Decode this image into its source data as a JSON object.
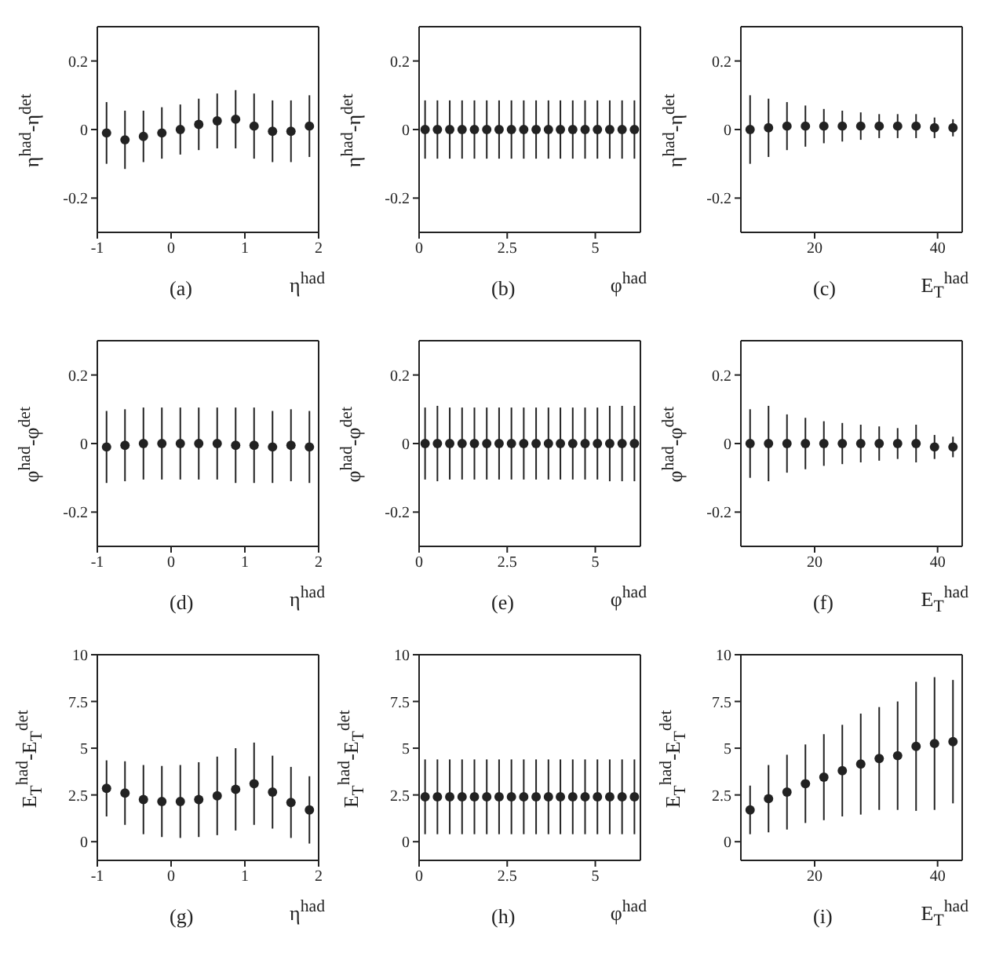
{
  "chart_data": [
    {
      "type": "scatter",
      "xlabel": "η$^{had}$",
      "ylabel": "η$^{had}$-η$^{det}$",
      "annotations": [
        "(a)"
      ],
      "marker": "circle",
      "color": "#222222",
      "x": [
        -0.875,
        -0.625,
        -0.375,
        -0.125,
        0.125,
        0.375,
        0.625,
        0.875,
        1.125,
        1.375,
        1.625,
        1.875
      ],
      "values": [
        -0.01,
        -0.03,
        -0.02,
        -0.01,
        0.0,
        0.015,
        0.025,
        0.03,
        0.01,
        -0.005,
        -0.005,
        0.01
      ],
      "errors": [
        0.09,
        0.085,
        0.075,
        0.075,
        0.073,
        0.075,
        0.08,
        0.085,
        0.095,
        0.09,
        0.09,
        0.09
      ],
      "xlim": [
        -1,
        2
      ],
      "xticks": [
        -1,
        0,
        1,
        2
      ],
      "ylim": [
        -0.3,
        0.3
      ],
      "yticks": [
        -0.2,
        0,
        0.2
      ]
    },
    {
      "type": "scatter",
      "xlabel": "φ$^{had}$",
      "ylabel": "η$^{had}$-η$^{det}$",
      "annotations": [
        "(b)"
      ],
      "marker": "circle",
      "color": "#222222",
      "x": [
        0.17,
        0.52,
        0.87,
        1.22,
        1.57,
        1.92,
        2.27,
        2.62,
        2.97,
        3.32,
        3.67,
        4.01,
        4.36,
        4.71,
        5.06,
        5.41,
        5.76,
        6.11
      ],
      "values": [
        0,
        0,
        0,
        0,
        0,
        0,
        0,
        0,
        0,
        0,
        0,
        0,
        0,
        0,
        0,
        0,
        0,
        0
      ],
      "errors": [
        0.085,
        0.085,
        0.085,
        0.085,
        0.085,
        0.085,
        0.085,
        0.085,
        0.085,
        0.085,
        0.085,
        0.085,
        0.085,
        0.085,
        0.085,
        0.085,
        0.085,
        0.085
      ],
      "xlim": [
        0,
        6.28
      ],
      "xticks": [
        0,
        2.5,
        5
      ],
      "ylim": [
        -0.3,
        0.3
      ],
      "yticks": [
        -0.2,
        0,
        0.2
      ]
    },
    {
      "type": "scatter",
      "xlabel": "E$_{T}$$^{had}$",
      "ylabel": "η$^{had}$-η$^{det}$",
      "annotations": [
        "(c)"
      ],
      "marker": "circle",
      "color": "#222222",
      "x": [
        9.5,
        12.5,
        15.5,
        18.5,
        21.5,
        24.5,
        27.5,
        30.5,
        33.5,
        36.5,
        39.5,
        42.5
      ],
      "values": [
        0,
        0.005,
        0.01,
        0.01,
        0.01,
        0.01,
        0.01,
        0.01,
        0.01,
        0.01,
        0.005,
        0.005
      ],
      "errors": [
        0.1,
        0.085,
        0.07,
        0.06,
        0.05,
        0.045,
        0.04,
        0.035,
        0.035,
        0.035,
        0.03,
        0.025
      ],
      "xlim": [
        8,
        44
      ],
      "xticks": [
        20,
        40
      ],
      "ylim": [
        -0.3,
        0.3
      ],
      "yticks": [
        -0.2,
        0,
        0.2
      ]
    },
    {
      "type": "scatter",
      "xlabel": "η$^{had}$",
      "ylabel": "φ$^{had}$-φ$^{det}$",
      "annotations": [
        "(d)"
      ],
      "marker": "circle",
      "color": "#222222",
      "x": [
        -0.875,
        -0.625,
        -0.375,
        -0.125,
        0.125,
        0.375,
        0.625,
        0.875,
        1.125,
        1.375,
        1.625,
        1.875
      ],
      "values": [
        -0.01,
        -0.005,
        0,
        0,
        0,
        0,
        0,
        -0.005,
        -0.005,
        -0.01,
        -0.005,
        -0.01
      ],
      "errors": [
        0.105,
        0.105,
        0.105,
        0.105,
        0.105,
        0.105,
        0.105,
        0.11,
        0.11,
        0.105,
        0.105,
        0.105
      ],
      "xlim": [
        -1,
        2
      ],
      "xticks": [
        -1,
        0,
        1,
        2
      ],
      "ylim": [
        -0.3,
        0.3
      ],
      "yticks": [
        -0.2,
        0,
        0.2
      ]
    },
    {
      "type": "scatter",
      "xlabel": "φ$^{had}$",
      "ylabel": "φ$^{had}$-φ$^{det}$",
      "annotations": [
        "(e)"
      ],
      "marker": "circle",
      "color": "#222222",
      "x": [
        0.17,
        0.52,
        0.87,
        1.22,
        1.57,
        1.92,
        2.27,
        2.62,
        2.97,
        3.32,
        3.67,
        4.01,
        4.36,
        4.71,
        5.06,
        5.41,
        5.76,
        6.11
      ],
      "values": [
        0,
        0,
        0,
        0,
        0,
        0,
        0,
        0,
        0,
        0,
        0,
        0,
        0,
        0,
        0,
        0,
        0,
        0
      ],
      "errors": [
        0.105,
        0.11,
        0.105,
        0.105,
        0.105,
        0.105,
        0.105,
        0.105,
        0.105,
        0.105,
        0.105,
        0.105,
        0.105,
        0.105,
        0.105,
        0.11,
        0.11,
        0.11
      ],
      "xlim": [
        0,
        6.28
      ],
      "xticks": [
        0,
        2.5,
        5
      ],
      "ylim": [
        -0.3,
        0.3
      ],
      "yticks": [
        -0.2,
        0,
        0.2
      ]
    },
    {
      "type": "scatter",
      "xlabel": "E$_{T}$$^{had}$",
      "ylabel": "φ$^{had}$-φ$^{det}$",
      "annotations": [
        "(f)"
      ],
      "marker": "circle",
      "color": "#222222",
      "x": [
        9.5,
        12.5,
        15.5,
        18.5,
        21.5,
        24.5,
        27.5,
        30.5,
        33.5,
        36.5,
        39.5,
        42.5
      ],
      "values": [
        0,
        0,
        0,
        0,
        0,
        0,
        0,
        0,
        0,
        0,
        -0.01,
        -0.01
      ],
      "errors": [
        0.1,
        0.11,
        0.085,
        0.075,
        0.065,
        0.06,
        0.055,
        0.05,
        0.045,
        0.055,
        0.035,
        0.03
      ],
      "xlim": [
        8,
        44
      ],
      "xticks": [
        20,
        40
      ],
      "ylim": [
        -0.3,
        0.3
      ],
      "yticks": [
        -0.2,
        0,
        0.2
      ]
    },
    {
      "type": "scatter",
      "xlabel": "η$^{had}$",
      "ylabel": "E$_{T}$$^{had}$-E$_{T}$$^{det}$",
      "annotations": [
        "(g)"
      ],
      "marker": "circle",
      "color": "#222222",
      "x": [
        -0.875,
        -0.625,
        -0.375,
        -0.125,
        0.125,
        0.375,
        0.625,
        0.875,
        1.125,
        1.375,
        1.625,
        1.875
      ],
      "values": [
        2.85,
        2.6,
        2.25,
        2.15,
        2.15,
        2.25,
        2.45,
        2.8,
        3.1,
        2.65,
        2.1,
        1.7
      ],
      "errors": [
        1.5,
        1.7,
        1.85,
        1.9,
        1.95,
        2.0,
        2.1,
        2.2,
        2.2,
        1.95,
        1.9,
        1.8
      ],
      "xlim": [
        -1,
        2
      ],
      "xticks": [
        -1,
        0,
        1,
        2
      ],
      "ylim": [
        -1,
        10
      ],
      "yticks": [
        0,
        2.5,
        5,
        7.5,
        10
      ]
    },
    {
      "type": "scatter",
      "xlabel": "φ$^{had}$",
      "ylabel": "E$_{T}$$^{had}$-E$_{T}$$^{det}$",
      "annotations": [
        "(h)"
      ],
      "marker": "circle",
      "color": "#222222",
      "x": [
        0.17,
        0.52,
        0.87,
        1.22,
        1.57,
        1.92,
        2.27,
        2.62,
        2.97,
        3.32,
        3.67,
        4.01,
        4.36,
        4.71,
        5.06,
        5.41,
        5.76,
        6.11
      ],
      "values": [
        2.4,
        2.4,
        2.4,
        2.4,
        2.4,
        2.4,
        2.4,
        2.4,
        2.4,
        2.4,
        2.4,
        2.4,
        2.4,
        2.4,
        2.4,
        2.4,
        2.4,
        2.4
      ],
      "errors": [
        2.0,
        2.0,
        2.0,
        2.0,
        2.0,
        2.0,
        2.0,
        2.0,
        2.0,
        2.0,
        2.0,
        2.0,
        2.0,
        2.0,
        2.0,
        2.0,
        2.0,
        2.0
      ],
      "xlim": [
        0,
        6.28
      ],
      "xticks": [
        0,
        2.5,
        5
      ],
      "ylim": [
        -1,
        10
      ],
      "yticks": [
        0,
        2.5,
        5,
        7.5,
        10
      ]
    },
    {
      "type": "scatter",
      "xlabel": "E$_{T}$$^{had}$",
      "ylabel": "E$_{T}$$^{had}$-E$_{T}$$^{det}$",
      "annotations": [
        "(i)"
      ],
      "marker": "circle",
      "color": "#222222",
      "x": [
        9.5,
        12.5,
        15.5,
        18.5,
        21.5,
        24.5,
        27.5,
        30.5,
        33.5,
        36.5,
        39.5,
        42.5
      ],
      "values": [
        1.7,
        2.3,
        2.65,
        3.1,
        3.45,
        3.8,
        4.15,
        4.45,
        4.6,
        5.1,
        5.25,
        5.35
      ],
      "errors": [
        1.3,
        1.8,
        2.0,
        2.1,
        2.3,
        2.45,
        2.7,
        2.75,
        2.9,
        3.45,
        3.55,
        3.3
      ],
      "xlim": [
        8,
        44
      ],
      "xticks": [
        20,
        40
      ],
      "ylim": [
        -1,
        10
      ],
      "yticks": [
        0,
        2.5,
        5,
        7.5,
        10
      ]
    }
  ]
}
